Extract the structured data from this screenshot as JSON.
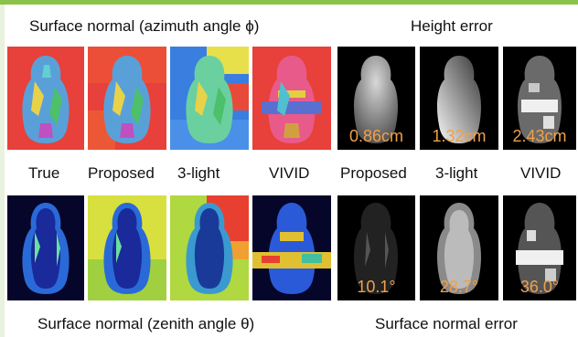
{
  "top_left_title": "Surface normal (azimuth angle ϕ)",
  "top_right_title": "Height error",
  "bottom_left_title": "Surface normal (zenith angle θ)",
  "bottom_right_title": "Surface normal error",
  "labels": [
    "True",
    "Proposed",
    "3-light",
    "VIVID",
    "Proposed",
    "3-light",
    "VIVID"
  ],
  "height_errors": [
    "0.86cm",
    "1.32cm",
    "2.43cm"
  ],
  "normal_errors": [
    "10.1°",
    "28.7°",
    "36.0°"
  ]
}
